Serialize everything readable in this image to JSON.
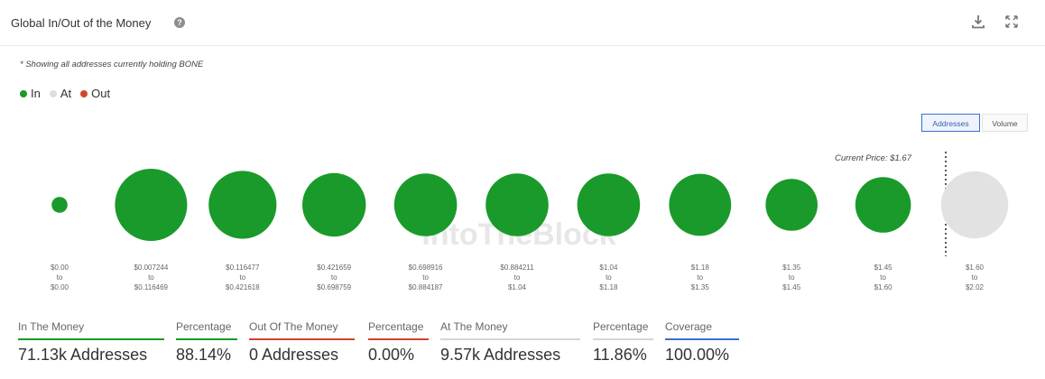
{
  "header": {
    "title": "Global In/Out of the Money",
    "help_icon": "help-circle-icon",
    "download_icon": "download-icon",
    "expand_icon": "expand-icon"
  },
  "note": "* Showing all addresses currently holding BONE",
  "legend": [
    {
      "label": "In",
      "color": "#1a9a2a"
    },
    {
      "label": "At",
      "color": "#dddddd"
    },
    {
      "label": "Out",
      "color": "#d2432c"
    }
  ],
  "toggles": {
    "addresses": "Addresses",
    "volume": "Volume"
  },
  "watermark": "IntoTheBlock",
  "chart_data": {
    "type": "bubble",
    "current_price_label": "Current Price: $1.67",
    "bins": [
      {
        "from": "$0.00",
        "to_word": "to",
        "to": "$0.00",
        "status": "in",
        "size": 0.22
      },
      {
        "from": "$0.007244",
        "to_word": "to",
        "to": "$0.116469",
        "status": "in",
        "size": 1.0
      },
      {
        "from": "$0.116477",
        "to_word": "to",
        "to": "$0.421618",
        "status": "in",
        "size": 0.94
      },
      {
        "from": "$0.421659",
        "to_word": "to",
        "to": "$0.698759",
        "status": "in",
        "size": 0.88
      },
      {
        "from": "$0.698916",
        "to_word": "to",
        "to": "$0.884187",
        "status": "in",
        "size": 0.87
      },
      {
        "from": "$0.884211",
        "to_word": "to",
        "to": "$1.04",
        "status": "in",
        "size": 0.87
      },
      {
        "from": "$1.04",
        "to_word": "to",
        "to": "$1.18",
        "status": "in",
        "size": 0.87
      },
      {
        "from": "$1.18",
        "to_word": "to",
        "to": "$1.35",
        "status": "in",
        "size": 0.86
      },
      {
        "from": "$1.35",
        "to_word": "to",
        "to": "$1.45",
        "status": "in",
        "size": 0.72
      },
      {
        "from": "$1.45",
        "to_word": "to",
        "to": "$1.60",
        "status": "in",
        "size": 0.77
      },
      {
        "from": "$1.60",
        "to_word": "to",
        "to": "$2.02",
        "status": "at",
        "size": 0.93
      }
    ]
  },
  "stats": [
    {
      "label": "In The Money",
      "value": "71.13k Addresses",
      "line_color": "#1a9a2a"
    },
    {
      "label": "Percentage",
      "value": "88.14%",
      "line_color": "#1a9a2a"
    },
    {
      "label": "Out Of The Money",
      "value": "0 Addresses",
      "line_color": "#d2432c"
    },
    {
      "label": "Percentage",
      "value": "0.00%",
      "line_color": "#d2432c"
    },
    {
      "label": "At The Money",
      "value": "9.57k Addresses",
      "line_color": "#d5d5d5"
    },
    {
      "label": "Percentage",
      "value": "11.86%",
      "line_color": "#d5d5d5"
    },
    {
      "label": "Coverage",
      "value": "100.00%",
      "line_color": "#3b6fd6"
    }
  ]
}
